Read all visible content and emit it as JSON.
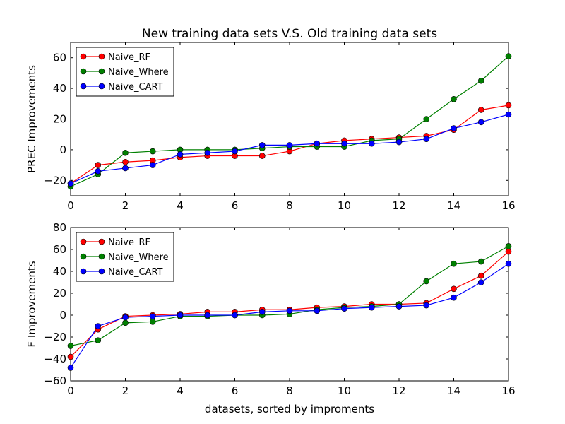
{
  "chart_data": [
    {
      "type": "line",
      "title": "New training data sets V.S. Old training data sets",
      "xlabel": "",
      "ylabel": "PREC Improvements",
      "xlim": [
        0,
        16
      ],
      "ylim": [
        -30,
        70
      ],
      "xticks": [
        0,
        2,
        4,
        6,
        8,
        10,
        12,
        14,
        16
      ],
      "yticks": [
        -20,
        0,
        20,
        40,
        60
      ],
      "x": [
        0,
        1,
        2,
        3,
        4,
        5,
        6,
        7,
        8,
        9,
        10,
        11,
        12,
        13,
        14,
        15,
        16
      ],
      "legend_position": "upper-left",
      "series": [
        {
          "name": "Naive_RF",
          "color": "#ff0000",
          "values": [
            -22,
            -10,
            -8,
            -7,
            -5,
            -4,
            -4,
            -4,
            -1,
            4,
            6,
            7,
            8,
            9,
            13,
            26,
            29
          ]
        },
        {
          "name": "Naive_Where",
          "color": "#008000",
          "values": [
            -24,
            -16,
            -2,
            -1,
            0,
            0,
            0,
            1,
            2,
            2,
            2,
            6,
            7,
            20,
            33,
            45,
            61
          ]
        },
        {
          "name": "Naive_CART",
          "color": "#0000ff",
          "values": [
            -22,
            -14,
            -12,
            -10,
            -3,
            -2,
            -1,
            3,
            3,
            4,
            4,
            4,
            5,
            7,
            14,
            18,
            23
          ]
        }
      ]
    },
    {
      "type": "line",
      "title": "",
      "xlabel": "datasets, sorted by improments",
      "ylabel": "F Improvements",
      "xlim": [
        0,
        16
      ],
      "ylim": [
        -60,
        80
      ],
      "xticks": [
        0,
        2,
        4,
        6,
        8,
        10,
        12,
        14,
        16
      ],
      "yticks": [
        -60,
        -40,
        -20,
        0,
        20,
        40,
        60,
        80
      ],
      "x": [
        0,
        1,
        2,
        3,
        4,
        5,
        6,
        7,
        8,
        9,
        10,
        11,
        12,
        13,
        14,
        15,
        16
      ],
      "legend_position": "upper-left",
      "series": [
        {
          "name": "Naive_RF",
          "color": "#ff0000",
          "values": [
            -38,
            -13,
            -1,
            0,
            1,
            3,
            3,
            5,
            5,
            7,
            8,
            10,
            10,
            11,
            24,
            36,
            58
          ]
        },
        {
          "name": "Naive_Where",
          "color": "#008000",
          "values": [
            -28,
            -23,
            -7,
            -6,
            -1,
            -1,
            0,
            0,
            1,
            5,
            7,
            8,
            10,
            31,
            47,
            49,
            63
          ]
        },
        {
          "name": "Naive_CART",
          "color": "#0000ff",
          "values": [
            -48,
            -10,
            -2,
            -1,
            0,
            0,
            0,
            3,
            4,
            4,
            6,
            7,
            8,
            9,
            16,
            30,
            47
          ]
        }
      ]
    }
  ]
}
